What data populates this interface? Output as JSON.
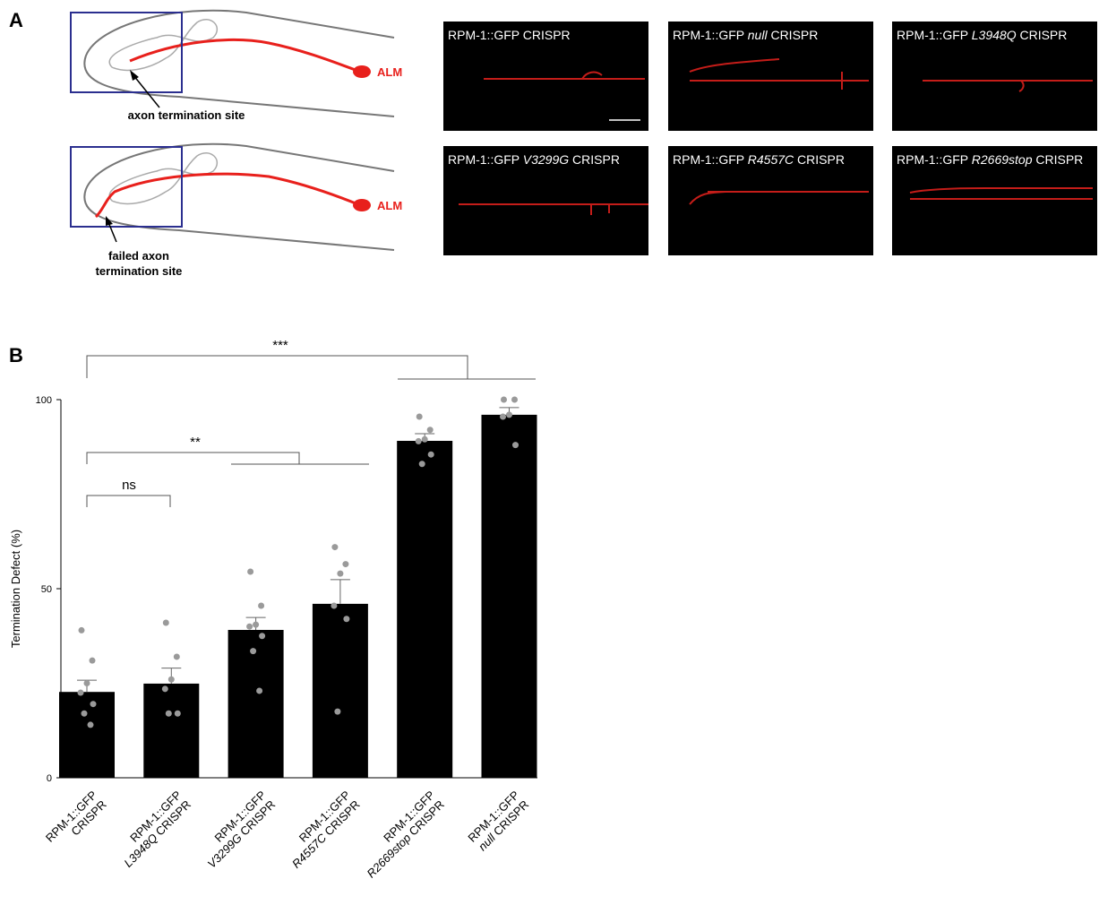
{
  "panel_a": {
    "letter": "A",
    "diagrams": [
      {
        "neuron": "ALM",
        "caption": [
          "axon termination site"
        ]
      },
      {
        "neuron": "ALM",
        "caption": [
          "failed axon",
          "termination site"
        ]
      }
    ],
    "images": [
      {
        "prefix": "RPM-1::GFP",
        "suffix": "CRISPR"
      },
      {
        "prefix": "RPM-1::GFP",
        "variant": "null",
        "suffix": "CRISPR"
      },
      {
        "prefix": "RPM-1::GFP",
        "variant": "L3948Q",
        "suffix": "CRISPR"
      },
      {
        "prefix": "RPM-1::GFP",
        "variant": "V3299G",
        "suffix": "CRISPR"
      },
      {
        "prefix": "RPM-1::GFP",
        "variant": "R4557C",
        "suffix": "CRISPR"
      },
      {
        "prefix": "RPM-1::GFP",
        "variant": "R2669stop",
        "suffix": "CRISPR"
      }
    ]
  },
  "chart_data": {
    "type": "bar",
    "panel_letter": "B",
    "y_label": "Termination Defect (%)",
    "categories": [
      {
        "prefix": "RPM-1::GFP",
        "suffix": "CRISPR"
      },
      {
        "prefix": "RPM-1::GFP",
        "variant": "L3948Q",
        "suffix": "CRISPR"
      },
      {
        "prefix": "RPM-1::GFP",
        "variant": "V3299G",
        "suffix": "CRISPR"
      },
      {
        "prefix": "RPM-1::GFP",
        "variant": "R4557C",
        "suffix": "CRISPR"
      },
      {
        "prefix": "RPM-1::GFP",
        "variant": "R2669stop",
        "suffix": "CRISPR"
      },
      {
        "prefix": "RPM-1::GFP",
        "variant": "null",
        "suffix": "CRISPR"
      }
    ],
    "values": [
      22.7,
      24.9,
      39.1,
      46,
      89.1,
      96
    ],
    "errors": [
      3.1,
      4.1,
      3.3,
      6.4,
      1.9,
      1.9
    ],
    "points": [
      [
        39,
        31,
        25,
        22.5,
        19.5,
        17,
        14
      ],
      [
        41,
        32,
        26,
        23.5,
        17,
        17
      ],
      [
        54.5,
        45.5,
        40.5,
        40,
        37.5,
        33.5,
        23
      ],
      [
        61,
        56.5,
        54,
        45.5,
        42,
        17.5
      ],
      [
        95.5,
        92,
        89.5,
        89,
        85.5,
        83
      ],
      [
        100,
        100,
        96,
        95.5,
        88
      ]
    ],
    "color": "#000000",
    "point_color": "#9a9a9a",
    "ylim": [
      0,
      100
    ],
    "yticks": [
      0,
      50,
      100
    ],
    "annotations": [
      "ns",
      "**",
      "***"
    ]
  }
}
